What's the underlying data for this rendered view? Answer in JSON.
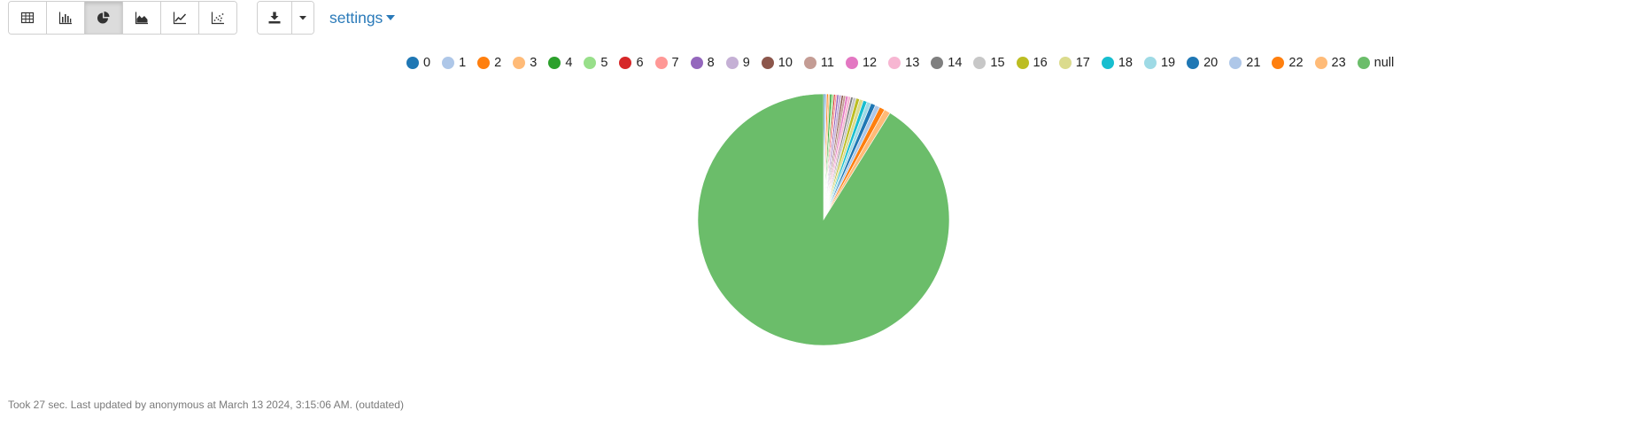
{
  "toolbar": {
    "view_buttons": [
      {
        "name": "table-view-button",
        "icon": "table-icon",
        "active": false
      },
      {
        "name": "bar-chart-view-button",
        "icon": "bar-chart-icon",
        "active": false
      },
      {
        "name": "pie-chart-view-button",
        "icon": "pie-chart-icon",
        "active": true
      },
      {
        "name": "area-chart-view-button",
        "icon": "area-chart-icon",
        "active": false
      },
      {
        "name": "line-chart-view-button",
        "icon": "line-chart-icon",
        "active": false
      },
      {
        "name": "scatter-chart-view-button",
        "icon": "scatter-chart-icon",
        "active": false
      }
    ],
    "download_icon": "download-icon",
    "dropdown_icon": "caret-down-icon",
    "settings_label": "settings",
    "accent_color": "#2a7ab9"
  },
  "chart_data": {
    "type": "pie",
    "categories": [
      "0",
      "1",
      "2",
      "3",
      "4",
      "5",
      "6",
      "7",
      "8",
      "9",
      "10",
      "11",
      "12",
      "13",
      "14",
      "15",
      "16",
      "17",
      "18",
      "19",
      "20",
      "21",
      "22",
      "23",
      "null"
    ],
    "values": [
      0.2,
      0.2,
      0.2,
      0.2,
      0.25,
      0.25,
      0.2,
      0.2,
      0.25,
      0.35,
      0.25,
      0.3,
      0.3,
      0.35,
      0.3,
      0.4,
      0.45,
      0.5,
      0.5,
      0.55,
      0.6,
      0.6,
      0.7,
      0.8,
      91.45
    ],
    "colors": [
      "#1f77b4",
      "#aec7e8",
      "#ff7f0e",
      "#ffbb78",
      "#2ca02c",
      "#98df8a",
      "#d62728",
      "#ff9896",
      "#9467bd",
      "#c5b0d5",
      "#8c564b",
      "#c49c94",
      "#e377c2",
      "#f7b6d2",
      "#7f7f7f",
      "#c7c7c7",
      "#bcbd22",
      "#dbdb8d",
      "#17becf",
      "#9edae5",
      "#1f77b4",
      "#aec7e8",
      "#ff7f0e",
      "#ffbb78",
      "#6bbd6a"
    ],
    "legend_position": "top"
  },
  "footer": {
    "status": "Took 27 sec. Last updated by anonymous at March 13 2024, 3:15:06 AM. (outdated)"
  }
}
